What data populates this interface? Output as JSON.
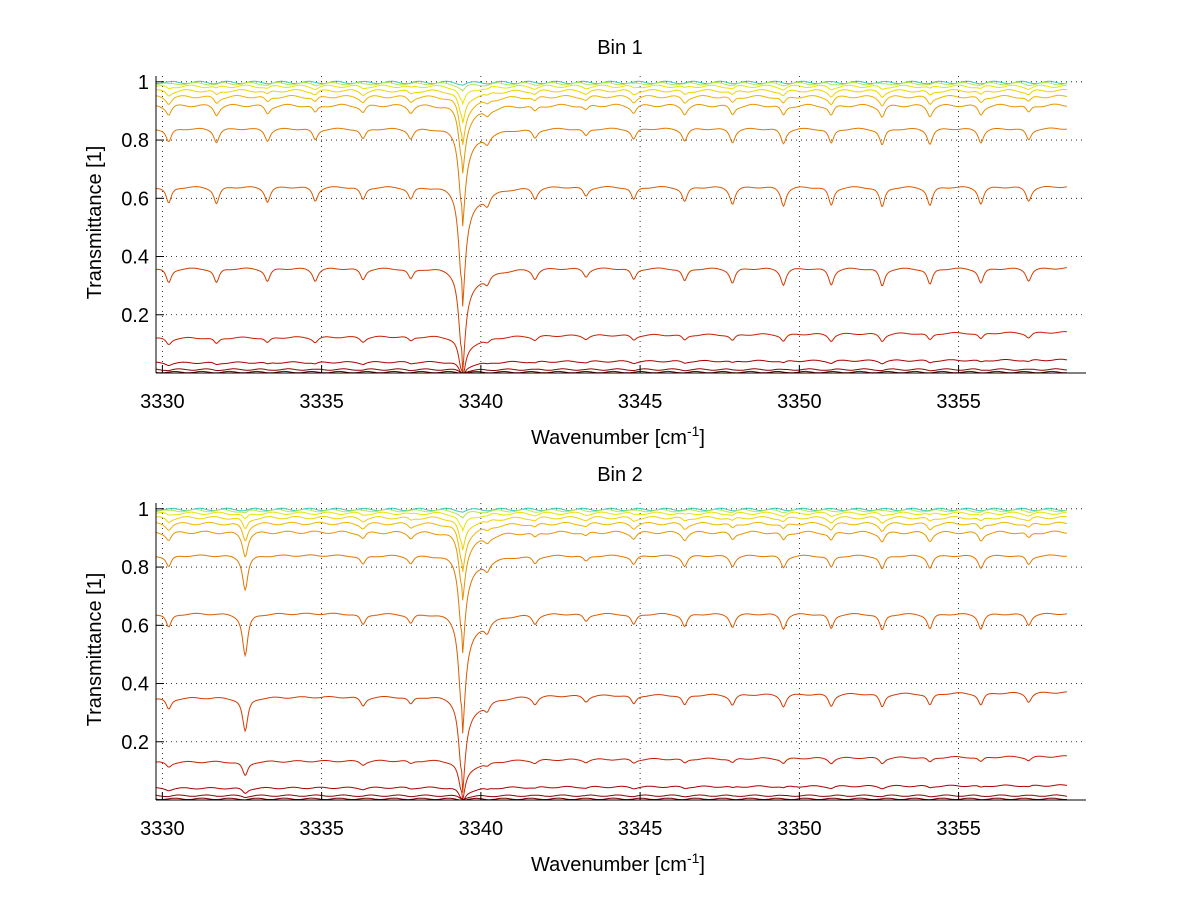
{
  "chart_data": [
    {
      "type": "line",
      "title": "Bin 1",
      "xlabel": "Wavenumber [cm",
      "xlabel_sup": "-1",
      "xlabel_tail": "]",
      "ylabel": "Transmittance [1]",
      "xlim": [
        3329.8,
        3359
      ],
      "ylim": [
        0,
        1.02
      ],
      "xticks": [
        3330,
        3335,
        3340,
        3345,
        3350,
        3355
      ],
      "xtick_labels": [
        "3330",
        "3335",
        "3340",
        "3345",
        "3350",
        "3355"
      ],
      "yticks": [
        0.2,
        0.4,
        0.6,
        0.8,
        1
      ],
      "ytick_labels": [
        "0.2",
        "0.4",
        "0.6",
        "0.8",
        "1"
      ],
      "grid": "dotted",
      "x_end": 3358.4,
      "series": [
        {
          "baseline": 0.998,
          "slope": 0.0,
          "depth": 0.005,
          "color": "#3cc8b4"
        },
        {
          "baseline": 0.994,
          "slope": 0.0,
          "depth": 0.02,
          "color": "#b4e650"
        },
        {
          "baseline": 0.985,
          "slope": 0.0,
          "depth": 0.05,
          "color": "#e6e600"
        },
        {
          "baseline": 0.97,
          "slope": 0.0,
          "depth": 0.09,
          "color": "#f0d200"
        },
        {
          "baseline": 0.95,
          "slope": 0.0,
          "depth": 0.13,
          "color": "#f0b400"
        },
        {
          "baseline": 0.92,
          "slope": 0.0,
          "depth": 0.18,
          "color": "#e69600"
        },
        {
          "baseline": 0.84,
          "slope": 0.0,
          "depth": 0.26,
          "color": "#e07800"
        },
        {
          "baseline": 0.64,
          "slope": 0.0,
          "depth": 0.32,
          "color": "#dc5a00"
        },
        {
          "baseline": 0.36,
          "slope": 0.0,
          "depth": 0.28,
          "color": "#d23c00"
        },
        {
          "baseline": 0.14,
          "slope": -0.02,
          "depth": 0.12,
          "color": "#c81e00"
        },
        {
          "baseline": 0.045,
          "slope": -0.01,
          "depth": 0.04,
          "color": "#aa0000"
        },
        {
          "baseline": 0.012,
          "slope": 0.0,
          "depth": 0.01,
          "color": "#8c0000"
        },
        {
          "baseline": 0.003,
          "slope": 0.0,
          "depth": 0.002,
          "color": "#780000"
        }
      ],
      "lines": [
        {
          "center": 3339.4,
          "weight": 1.0,
          "width": 0.12,
          "tail": 0.6
        },
        {
          "center": 3330.2,
          "weight": 0.18,
          "width": 0.1,
          "tail": 0.15
        },
        {
          "center": 3331.7,
          "weight": 0.18,
          "width": 0.1,
          "tail": 0.1
        },
        {
          "center": 3333.3,
          "weight": 0.16,
          "width": 0.1,
          "tail": 0.1
        },
        {
          "center": 3334.8,
          "weight": 0.15,
          "width": 0.1,
          "tail": 0.1
        },
        {
          "center": 3336.3,
          "weight": 0.14,
          "width": 0.1,
          "tail": 0.1
        },
        {
          "center": 3337.8,
          "weight": 0.13,
          "width": 0.1,
          "tail": 0.1
        },
        {
          "center": 3340.2,
          "weight": 0.1,
          "width": 0.1,
          "tail": 0.1
        },
        {
          "center": 3341.7,
          "weight": 0.12,
          "width": 0.1,
          "tail": 0.1
        },
        {
          "center": 3343.3,
          "weight": 0.1,
          "width": 0.1,
          "tail": 0.1
        },
        {
          "center": 3344.8,
          "weight": 0.14,
          "width": 0.1,
          "tail": 0.1
        },
        {
          "center": 3346.4,
          "weight": 0.16,
          "width": 0.1,
          "tail": 0.1
        },
        {
          "center": 3347.9,
          "weight": 0.18,
          "width": 0.1,
          "tail": 0.1
        },
        {
          "center": 3349.5,
          "weight": 0.2,
          "width": 0.1,
          "tail": 0.1
        },
        {
          "center": 3351.0,
          "weight": 0.2,
          "width": 0.1,
          "tail": 0.1
        },
        {
          "center": 3352.6,
          "weight": 0.22,
          "width": 0.1,
          "tail": 0.1
        },
        {
          "center": 3354.1,
          "weight": 0.2,
          "width": 0.1,
          "tail": 0.1
        },
        {
          "center": 3355.7,
          "weight": 0.18,
          "width": 0.1,
          "tail": 0.1
        },
        {
          "center": 3357.2,
          "weight": 0.15,
          "width": 0.1,
          "tail": 0.1
        }
      ]
    },
    {
      "type": "line",
      "title": "Bin 2",
      "xlabel": "Wavenumber [cm",
      "xlabel_sup": "-1",
      "xlabel_tail": "]",
      "ylabel": "Transmittance [1]",
      "xlim": [
        3329.8,
        3359
      ],
      "ylim": [
        0,
        1.02
      ],
      "xticks": [
        3330,
        3335,
        3340,
        3345,
        3350,
        3355
      ],
      "xtick_labels": [
        "3330",
        "3335",
        "3340",
        "3345",
        "3350",
        "3355"
      ],
      "yticks": [
        0.2,
        0.4,
        0.6,
        0.8,
        1
      ],
      "ytick_labels": [
        "0.2",
        "0.4",
        "0.6",
        "0.8",
        "1"
      ],
      "grid": "dotted",
      "x_end": 3358.4,
      "series": [
        {
          "baseline": 0.998,
          "slope": 0.0,
          "depth": 0.005,
          "color": "#3cc8b4"
        },
        {
          "baseline": 0.994,
          "slope": 0.0,
          "depth": 0.02,
          "color": "#b4e650"
        },
        {
          "baseline": 0.985,
          "slope": 0.0,
          "depth": 0.05,
          "color": "#e6e600"
        },
        {
          "baseline": 0.97,
          "slope": 0.0,
          "depth": 0.09,
          "color": "#f0d200"
        },
        {
          "baseline": 0.95,
          "slope": 0.0,
          "depth": 0.13,
          "color": "#f0b400"
        },
        {
          "baseline": 0.92,
          "slope": 0.0,
          "depth": 0.18,
          "color": "#e69600"
        },
        {
          "baseline": 0.84,
          "slope": 0.0,
          "depth": 0.26,
          "color": "#e07800"
        },
        {
          "baseline": 0.64,
          "slope": 0.0,
          "depth": 0.32,
          "color": "#dc5a00"
        },
        {
          "baseline": 0.37,
          "slope": -0.02,
          "depth": 0.26,
          "color": "#d23c00"
        },
        {
          "baseline": 0.15,
          "slope": -0.02,
          "depth": 0.11,
          "color": "#c81e00"
        },
        {
          "baseline": 0.05,
          "slope": -0.01,
          "depth": 0.04,
          "color": "#aa0000"
        },
        {
          "baseline": 0.015,
          "slope": 0.0,
          "depth": 0.01,
          "color": "#8c0000"
        },
        {
          "baseline": 0.004,
          "slope": 0.0,
          "depth": 0.003,
          "color": "#780000"
        }
      ],
      "lines": [
        {
          "center": 3339.4,
          "weight": 1.0,
          "width": 0.12,
          "tail": 0.6
        },
        {
          "center": 3332.6,
          "weight": 0.45,
          "width": 0.1,
          "tail": 0.1
        },
        {
          "center": 3330.2,
          "weight": 0.15,
          "width": 0.1,
          "tail": 0.15
        },
        {
          "center": 3336.3,
          "weight": 0.12,
          "width": 0.1,
          "tail": 0.1
        },
        {
          "center": 3337.8,
          "weight": 0.1,
          "width": 0.1,
          "tail": 0.1
        },
        {
          "center": 3340.2,
          "weight": 0.1,
          "width": 0.1,
          "tail": 0.1
        },
        {
          "center": 3341.7,
          "weight": 0.1,
          "width": 0.1,
          "tail": 0.1
        },
        {
          "center": 3343.3,
          "weight": 0.08,
          "width": 0.1,
          "tail": 0.1
        },
        {
          "center": 3344.8,
          "weight": 0.12,
          "width": 0.1,
          "tail": 0.1
        },
        {
          "center": 3346.4,
          "weight": 0.14,
          "width": 0.1,
          "tail": 0.1
        },
        {
          "center": 3347.9,
          "weight": 0.14,
          "width": 0.1,
          "tail": 0.1
        },
        {
          "center": 3349.5,
          "weight": 0.16,
          "width": 0.1,
          "tail": 0.1
        },
        {
          "center": 3351.0,
          "weight": 0.16,
          "width": 0.1,
          "tail": 0.1
        },
        {
          "center": 3352.6,
          "weight": 0.18,
          "width": 0.1,
          "tail": 0.1
        },
        {
          "center": 3354.1,
          "weight": 0.16,
          "width": 0.1,
          "tail": 0.1
        },
        {
          "center": 3355.7,
          "weight": 0.16,
          "width": 0.1,
          "tail": 0.1
        },
        {
          "center": 3357.2,
          "weight": 0.12,
          "width": 0.1,
          "tail": 0.1
        }
      ]
    }
  ]
}
